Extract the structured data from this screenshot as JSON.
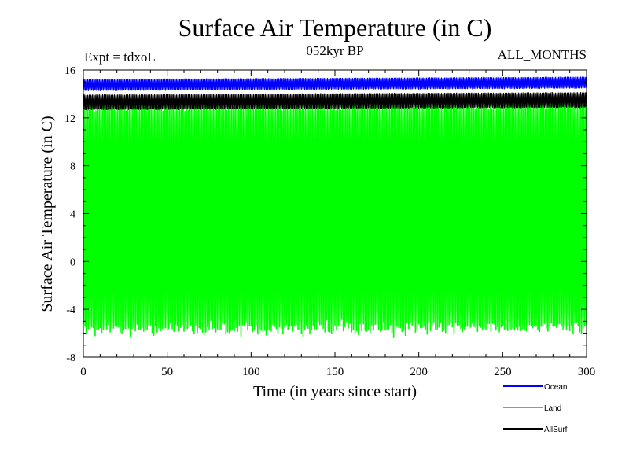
{
  "chart_data": {
    "type": "line",
    "title": "Surface Air Temperature (in C)",
    "experiment_label": "Expt = tdxoL",
    "subtitle": "052kyr BP",
    "period_label": "ALL_MONTHS",
    "xlabel": "Time (in years since start)",
    "ylabel": "Surface Air Temperature (in C)",
    "xlim": [
      0,
      300
    ],
    "ylim": [
      -8,
      16
    ],
    "xticks": [
      0,
      50,
      100,
      150,
      200,
      250,
      300
    ],
    "xtick_labels": [
      "0",
      "50",
      "100",
      "150",
      "200",
      "250",
      "300"
    ],
    "yticks": [
      -8,
      -4,
      0,
      4,
      8,
      12,
      16
    ],
    "ytick_labels": [
      "-8",
      "-4",
      "0",
      "4",
      "8",
      "12",
      "16"
    ],
    "grid": false,
    "legend_position": "below-right",
    "series": [
      {
        "name": "Ocean",
        "color": "#0000ff",
        "annual_min": 14.4,
        "annual_max": 15.3,
        "trend_start": 14.8,
        "trend_end": 15.0
      },
      {
        "name": "Land",
        "color": "#00ff00",
        "annual_min": -5.6,
        "annual_max": 13.0,
        "trend_start": 12.6,
        "trend_end": 12.8
      },
      {
        "name": "AllSurf",
        "color": "#000000",
        "annual_min": 12.8,
        "annual_max": 14.0,
        "trend_start": 13.3,
        "trend_end": 13.5
      }
    ]
  }
}
